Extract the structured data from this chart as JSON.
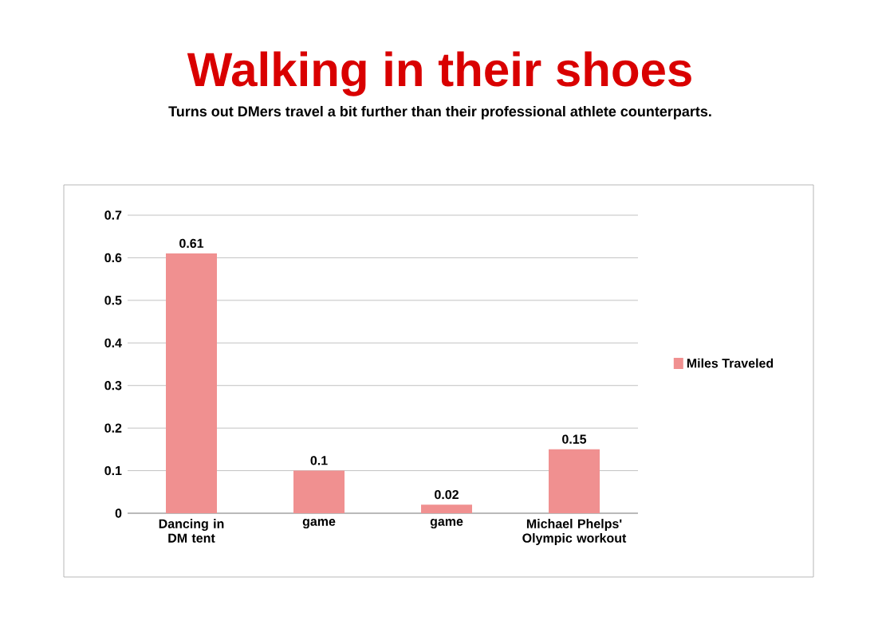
{
  "chart_data": {
    "type": "bar",
    "title": "Walking in their shoes",
    "subtitle": "Turns out DMers travel a bit further than their professional athlete counterparts.",
    "categories": [
      "Dancing in DM tent",
      "game",
      "game",
      "Michael Phelps' Olympic workout"
    ],
    "series": [
      {
        "name": "Miles Traveled",
        "color": "#f09090",
        "values": [
          0.61,
          0.1,
          0.02,
          0.15
        ]
      }
    ],
    "ylim": [
      0,
      0.7
    ],
    "yticks": [
      0,
      0.1,
      0.2,
      0.3,
      0.4,
      0.5,
      0.6,
      0.7
    ],
    "grid": "y",
    "legend": "right",
    "data_labels": true
  }
}
